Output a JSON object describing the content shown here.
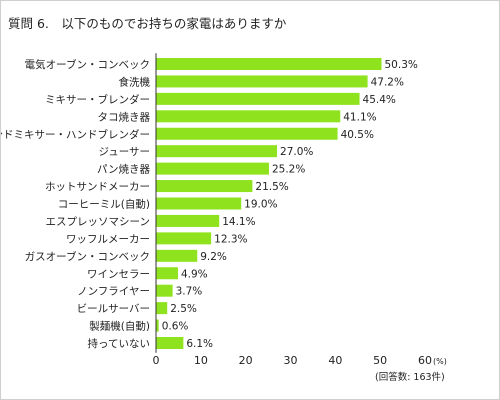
{
  "chart_data": {
    "type": "bar",
    "orientation": "horizontal",
    "title": "質問 6.　以下のものでお持ちの家電はありますか",
    "categories": [
      "電気オーブン・コンベック",
      "食洗機",
      "ミキサー・ブレンダー",
      "タコ焼き器",
      "ハンドミキサー・ハンドブレンダー",
      "ジューサー",
      "パン焼き器",
      "ホットサンドメーカー",
      "コーヒーミル(自動)",
      "エスプレッソマシーン",
      "ワッフルメーカー",
      "ガスオーブン・コンベック",
      "ワインセラー",
      "ノンフライヤー",
      "ビールサーバー",
      "製麺機(自動)",
      "持っていない"
    ],
    "values": [
      50.3,
      47.2,
      45.4,
      41.1,
      40.5,
      27.0,
      25.2,
      21.5,
      19.0,
      14.1,
      12.3,
      9.2,
      4.9,
      3.7,
      2.5,
      0.6,
      6.1
    ],
    "value_labels": [
      "50.3%",
      "47.2%",
      "45.4%",
      "41.1%",
      "40.5%",
      "27.0%",
      "25.2%",
      "21.5%",
      "19.0%",
      "14.1%",
      "12.3%",
      "9.2%",
      "4.9%",
      "3.7%",
      "2.5%",
      "0.6%",
      "6.1%"
    ],
    "xlim": [
      0,
      60
    ],
    "xticks": [
      "0",
      "10",
      "20",
      "30",
      "40",
      "50",
      "60"
    ],
    "unit_label": "(%)",
    "respondents_note": "(回答数: 163件)",
    "bar_color": "#8ee31e",
    "grid": false,
    "legend": "none"
  }
}
